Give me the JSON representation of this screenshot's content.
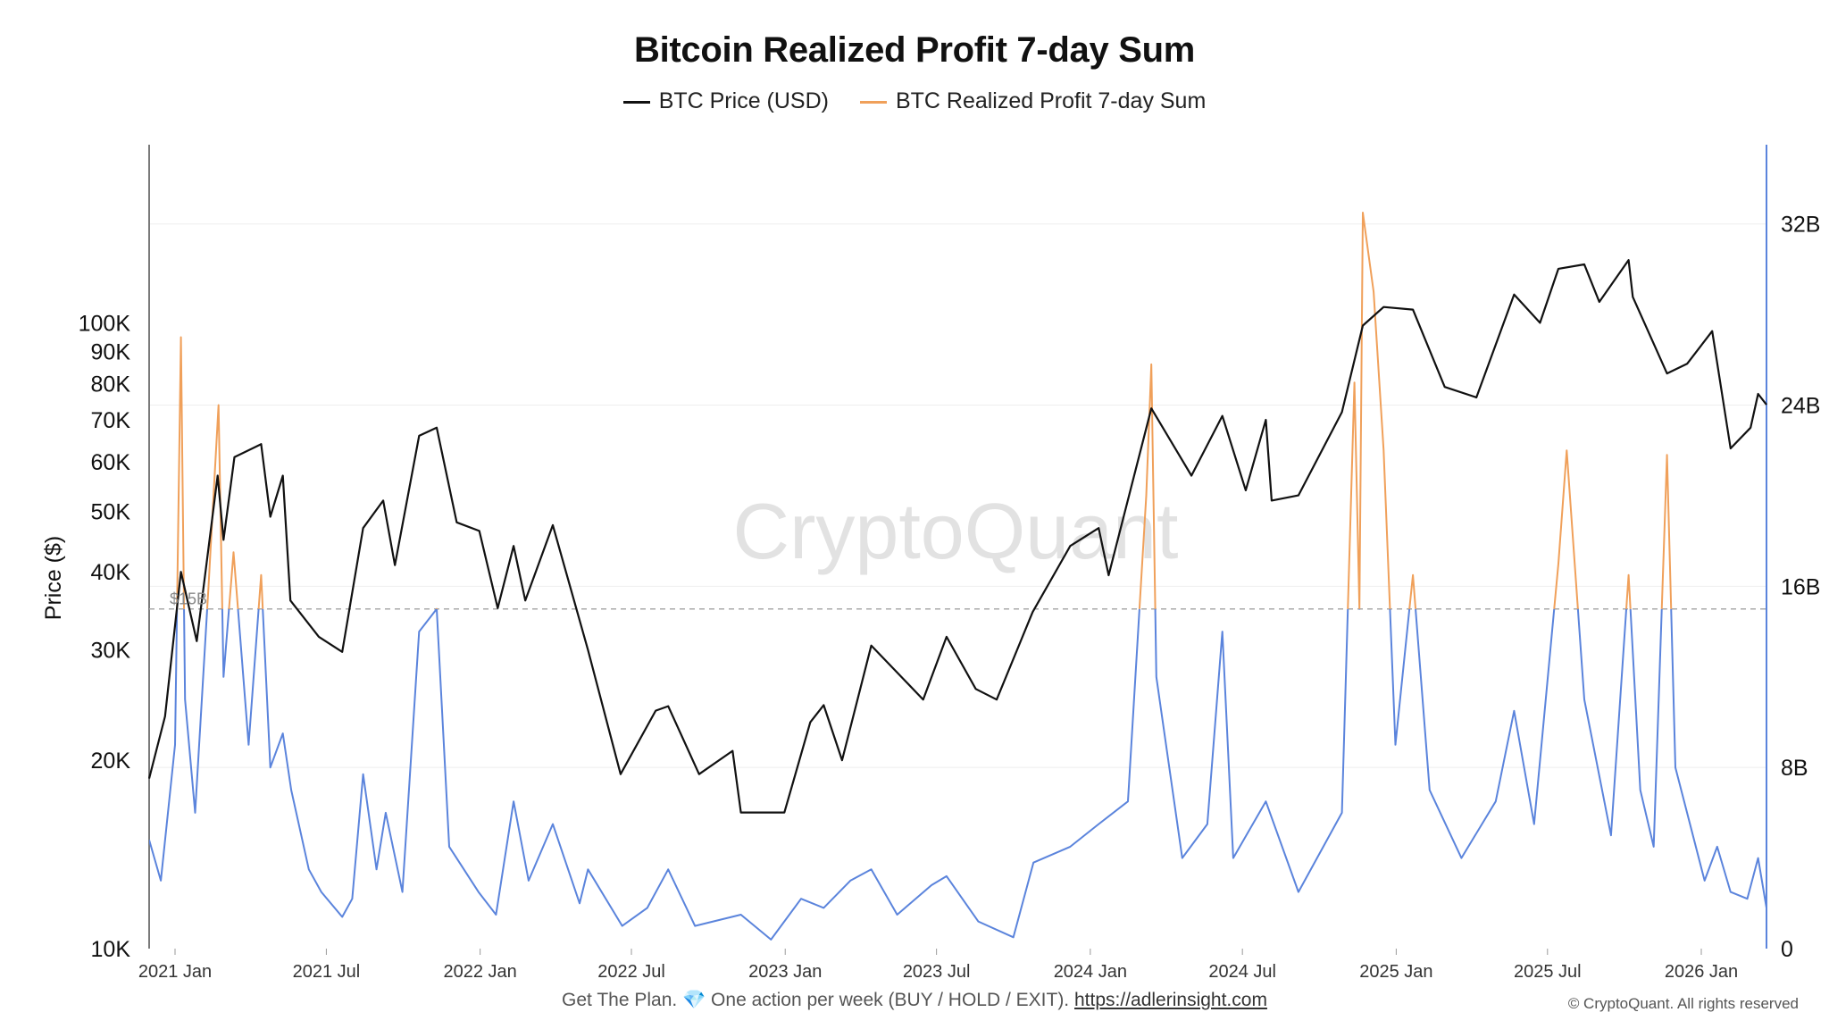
{
  "chart_data": {
    "type": "line",
    "title": "Bitcoin Realized Profit 7-day Sum",
    "legend": [
      {
        "name": "BTC Price (USD)",
        "color": "#111111"
      },
      {
        "name": "BTC Realized Profit 7-day Sum",
        "color": "#f0a05a"
      }
    ],
    "legend_placement": "top-center",
    "watermark": "CryptoQuant",
    "y_left": {
      "label": "Price ($)",
      "scale": "log",
      "range": [
        10000,
        170000
      ],
      "ticks": [
        10000,
        20000,
        30000,
        40000,
        50000,
        60000,
        70000,
        80000,
        90000,
        100000
      ],
      "tick_labels": [
        "10K",
        "20K",
        "30K",
        "40K",
        "50K",
        "60K",
        "70K",
        "80K",
        "90K",
        "100K"
      ]
    },
    "y_right": {
      "label": "",
      "scale": "linear",
      "range": [
        0,
        34000000000
      ],
      "ticks": [
        0,
        8000000000,
        16000000000,
        24000000000,
        32000000000
      ],
      "tick_labels": [
        "0",
        "8B",
        "16B",
        "24B",
        "32B"
      ]
    },
    "x": {
      "range": [
        "2020-12-01",
        "2026-03-20"
      ],
      "tick_dates": [
        "2021-01-01",
        "2021-07-01",
        "2022-01-01",
        "2022-07-01",
        "2023-01-01",
        "2023-07-01",
        "2024-01-01",
        "2024-07-01",
        "2025-01-01",
        "2025-07-01",
        "2026-01-01"
      ],
      "tick_labels": [
        "2021 Jan",
        "2021 Jul",
        "2022 Jan",
        "2022 Jul",
        "2023 Jan",
        "2023 Jul",
        "2024 Jan",
        "2024 Jul",
        "2025 Jan",
        "2025 Jul",
        "2026 Jan"
      ]
    },
    "threshold": {
      "value": 15000000000,
      "label": "$15B",
      "colors": {
        "above": "#f0a05a",
        "below": "#5b84dc"
      }
    },
    "grid": true,
    "series": [
      {
        "name": "BTC Price (USD)",
        "axis": "left",
        "color": "#111111",
        "points": [
          [
            "2020-12-01",
            18700
          ],
          [
            "2020-12-20",
            23500
          ],
          [
            "2021-01-08",
            40000
          ],
          [
            "2021-01-27",
            31000
          ],
          [
            "2021-02-21",
            57000
          ],
          [
            "2021-02-28",
            45000
          ],
          [
            "2021-03-13",
            61000
          ],
          [
            "2021-04-14",
            64000
          ],
          [
            "2021-04-25",
            49000
          ],
          [
            "2021-05-10",
            57000
          ],
          [
            "2021-05-19",
            36000
          ],
          [
            "2021-06-22",
            31500
          ],
          [
            "2021-07-20",
            29800
          ],
          [
            "2021-08-14",
            47000
          ],
          [
            "2021-09-07",
            52000
          ],
          [
            "2021-09-21",
            41000
          ],
          [
            "2021-10-20",
            66000
          ],
          [
            "2021-11-10",
            68000
          ],
          [
            "2021-12-04",
            48000
          ],
          [
            "2021-12-31",
            46500
          ],
          [
            "2022-01-22",
            35000
          ],
          [
            "2022-02-10",
            44000
          ],
          [
            "2022-02-24",
            36000
          ],
          [
            "2022-03-29",
            47500
          ],
          [
            "2022-05-10",
            30000
          ],
          [
            "2022-06-18",
            19000
          ],
          [
            "2022-07-30",
            24000
          ],
          [
            "2022-08-14",
            24400
          ],
          [
            "2022-09-20",
            19000
          ],
          [
            "2022-10-30",
            20700
          ],
          [
            "2022-11-09",
            16500
          ],
          [
            "2022-12-31",
            16500
          ],
          [
            "2023-01-31",
            23000
          ],
          [
            "2023-02-16",
            24500
          ],
          [
            "2023-03-10",
            20000
          ],
          [
            "2023-04-14",
            30500
          ],
          [
            "2023-06-15",
            25000
          ],
          [
            "2023-07-13",
            31500
          ],
          [
            "2023-08-17",
            26000
          ],
          [
            "2023-09-11",
            25000
          ],
          [
            "2023-10-24",
            34500
          ],
          [
            "2023-12-08",
            44000
          ],
          [
            "2024-01-11",
            47000
          ],
          [
            "2024-01-23",
            39500
          ],
          [
            "2024-03-14",
            73000
          ],
          [
            "2024-05-01",
            57000
          ],
          [
            "2024-06-07",
            71000
          ],
          [
            "2024-07-05",
            54000
          ],
          [
            "2024-07-29",
            70000
          ],
          [
            "2024-08-05",
            52000
          ],
          [
            "2024-09-06",
            53000
          ],
          [
            "2024-10-28",
            72000
          ],
          [
            "2024-11-22",
            99000
          ],
          [
            "2024-12-17",
            106000
          ],
          [
            "2025-01-21",
            105000
          ],
          [
            "2025-02-28",
            79000
          ],
          [
            "2025-04-07",
            76000
          ],
          [
            "2025-05-22",
            111000
          ],
          [
            "2025-06-22",
            100000
          ],
          [
            "2025-07-14",
            122000
          ],
          [
            "2025-08-14",
            124000
          ],
          [
            "2025-09-01",
            108000
          ],
          [
            "2025-10-06",
            126000
          ],
          [
            "2025-10-11",
            110000
          ],
          [
            "2025-11-21",
            83000
          ],
          [
            "2025-12-15",
            86000
          ],
          [
            "2026-01-14",
            97000
          ],
          [
            "2026-02-05",
            63000
          ],
          [
            "2026-03-01",
            68000
          ],
          [
            "2026-03-10",
            77000
          ],
          [
            "2026-03-20",
            74000
          ]
        ]
      },
      {
        "name": "BTC Realized Profit 7-day Sum",
        "axis": "right",
        "color": "#f0a05a",
        "points": [
          [
            "2020-12-01",
            4800000000
          ],
          [
            "2020-12-15",
            3000000000
          ],
          [
            "2021-01-01",
            9000000000
          ],
          [
            "2021-01-08",
            27000000000
          ],
          [
            "2021-01-13",
            11000000000
          ],
          [
            "2021-01-25",
            6000000000
          ],
          [
            "2021-02-10",
            16000000000
          ],
          [
            "2021-02-22",
            24000000000
          ],
          [
            "2021-02-28",
            12000000000
          ],
          [
            "2021-03-12",
            17500000000
          ],
          [
            "2021-03-30",
            9000000000
          ],
          [
            "2021-04-14",
            16500000000
          ],
          [
            "2021-04-25",
            8000000000
          ],
          [
            "2021-05-10",
            9500000000
          ],
          [
            "2021-05-20",
            7000000000
          ],
          [
            "2021-06-10",
            3500000000
          ],
          [
            "2021-06-25",
            2500000000
          ],
          [
            "2021-07-20",
            1400000000
          ],
          [
            "2021-08-01",
            2200000000
          ],
          [
            "2021-08-14",
            7700000000
          ],
          [
            "2021-08-30",
            3500000000
          ],
          [
            "2021-09-10",
            6000000000
          ],
          [
            "2021-09-30",
            2500000000
          ],
          [
            "2021-10-20",
            14000000000
          ],
          [
            "2021-11-10",
            15000000000
          ],
          [
            "2021-11-25",
            4500000000
          ],
          [
            "2021-12-30",
            2500000000
          ],
          [
            "2022-01-20",
            1500000000
          ],
          [
            "2022-02-10",
            6500000000
          ],
          [
            "2022-02-28",
            3000000000
          ],
          [
            "2022-03-29",
            5500000000
          ],
          [
            "2022-04-30",
            2000000000
          ],
          [
            "2022-05-10",
            3500000000
          ],
          [
            "2022-06-20",
            1000000000
          ],
          [
            "2022-07-20",
            1800000000
          ],
          [
            "2022-08-14",
            3500000000
          ],
          [
            "2022-09-15",
            1000000000
          ],
          [
            "2022-11-09",
            1500000000
          ],
          [
            "2022-12-15",
            400000000
          ],
          [
            "2023-01-20",
            2200000000
          ],
          [
            "2023-02-16",
            1800000000
          ],
          [
            "2023-03-20",
            3000000000
          ],
          [
            "2023-04-14",
            3500000000
          ],
          [
            "2023-05-15",
            1500000000
          ],
          [
            "2023-06-25",
            2800000000
          ],
          [
            "2023-07-13",
            3200000000
          ],
          [
            "2023-08-20",
            1200000000
          ],
          [
            "2023-10-01",
            500000000
          ],
          [
            "2023-10-25",
            3800000000
          ],
          [
            "2023-12-08",
            4500000000
          ],
          [
            "2024-01-11",
            5500000000
          ],
          [
            "2024-02-15",
            6500000000
          ],
          [
            "2024-03-08",
            20000000000
          ],
          [
            "2024-03-14",
            25800000000
          ],
          [
            "2024-03-20",
            12000000000
          ],
          [
            "2024-04-20",
            4000000000
          ],
          [
            "2024-05-20",
            5500000000
          ],
          [
            "2024-06-07",
            14000000000
          ],
          [
            "2024-06-20",
            4000000000
          ],
          [
            "2024-07-29",
            6500000000
          ],
          [
            "2024-09-06",
            2500000000
          ],
          [
            "2024-10-28",
            6000000000
          ],
          [
            "2024-11-12",
            25000000000
          ],
          [
            "2024-11-18",
            15000000000
          ],
          [
            "2024-11-22",
            32500000000
          ],
          [
            "2024-12-05",
            29000000000
          ],
          [
            "2024-12-17",
            22000000000
          ],
          [
            "2024-12-31",
            9000000000
          ],
          [
            "2025-01-21",
            16500000000
          ],
          [
            "2025-02-10",
            7000000000
          ],
          [
            "2025-03-20",
            4000000000
          ],
          [
            "2025-04-30",
            6500000000
          ],
          [
            "2025-05-22",
            10500000000
          ],
          [
            "2025-06-15",
            5500000000
          ],
          [
            "2025-07-14",
            17000000000
          ],
          [
            "2025-07-24",
            22000000000
          ],
          [
            "2025-08-14",
            11000000000
          ],
          [
            "2025-09-15",
            5000000000
          ],
          [
            "2025-10-06",
            16500000000
          ],
          [
            "2025-10-20",
            7000000000
          ],
          [
            "2025-11-05",
            4500000000
          ],
          [
            "2025-11-21",
            21800000000
          ],
          [
            "2025-12-01",
            8000000000
          ],
          [
            "2026-01-05",
            3000000000
          ],
          [
            "2026-01-20",
            4500000000
          ],
          [
            "2026-02-05",
            2500000000
          ],
          [
            "2026-02-25",
            2200000000
          ],
          [
            "2026-03-10",
            4000000000
          ],
          [
            "2026-03-20",
            1800000000
          ]
        ]
      }
    ]
  },
  "footer": {
    "note": "Get The Plan. 💎 One action per week (BUY / HOLD / EXIT).",
    "link": "https://adlerinsight.com",
    "copyright": "© CryptoQuant. All rights reserved"
  }
}
